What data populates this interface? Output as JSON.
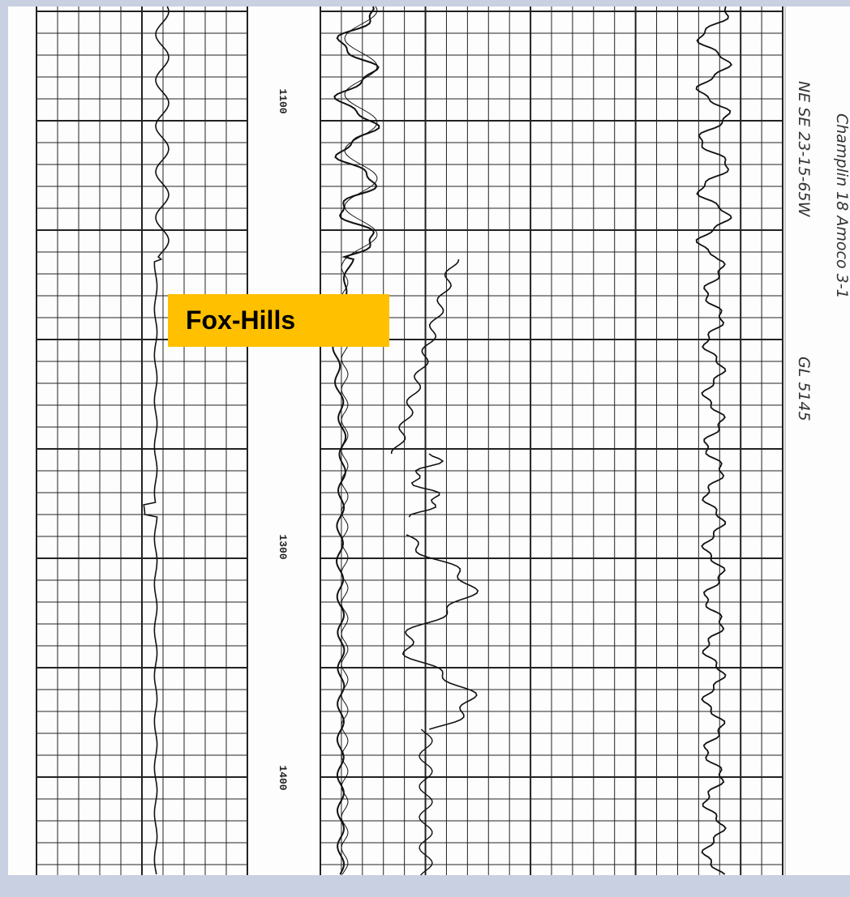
{
  "label": "Fox-Hills",
  "depth_labels": [
    "1100",
    "1300",
    "1400"
  ],
  "header_notes": [
    "Champlin 18 Amoco 3-1",
    "NE SE 23-15-65W",
    "GL 5145"
  ]
}
